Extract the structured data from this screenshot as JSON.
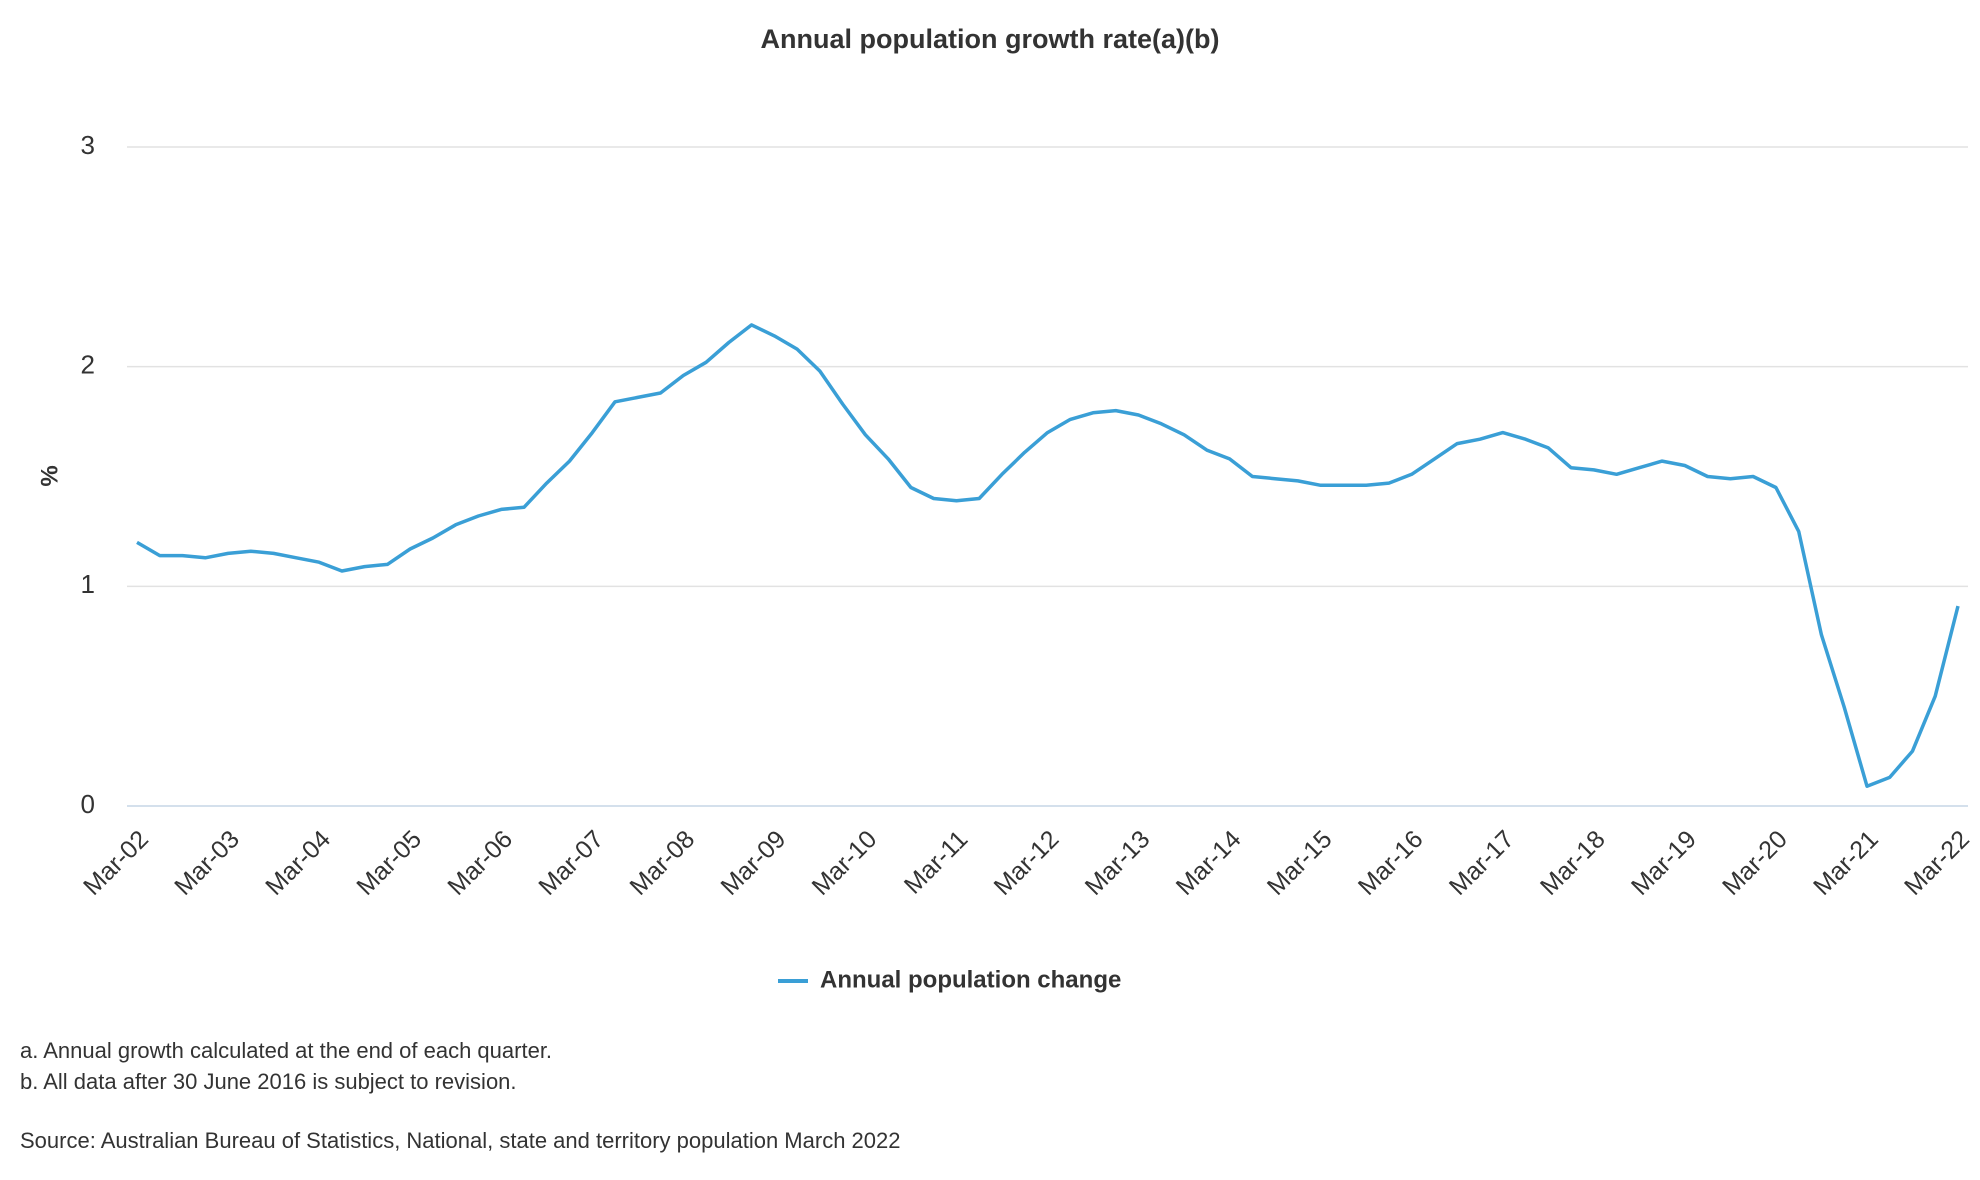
{
  "chart_data": {
    "type": "line",
    "title": "Annual population growth rate(a)(b)",
    "y_label": "%",
    "categories": [
      "Mar-02",
      null,
      null,
      null,
      "Mar-03",
      null,
      null,
      null,
      "Mar-04",
      null,
      null,
      null,
      "Mar-05",
      null,
      null,
      null,
      "Mar-06",
      null,
      null,
      null,
      "Mar-07",
      null,
      null,
      null,
      "Mar-08",
      null,
      null,
      null,
      "Mar-09",
      null,
      null,
      null,
      "Mar-10",
      null,
      null,
      null,
      "Mar-11",
      null,
      null,
      null,
      "Mar-12",
      null,
      null,
      null,
      "Mar-13",
      null,
      null,
      null,
      "Mar-14",
      null,
      null,
      null,
      "Mar-15",
      null,
      null,
      null,
      "Mar-16",
      null,
      null,
      null,
      "Mar-17",
      null,
      null,
      null,
      "Mar-18",
      null,
      null,
      null,
      "Mar-19",
      null,
      null,
      null,
      "Mar-20",
      null,
      null,
      null,
      "Mar-21",
      null,
      null,
      null,
      "Mar-22"
    ],
    "series": [
      {
        "name": "Annual population change",
        "color": "#3a9fd6",
        "values": [
          1.2,
          1.14,
          1.14,
          1.13,
          1.15,
          1.16,
          1.15,
          1.13,
          1.11,
          1.07,
          1.09,
          1.1,
          1.17,
          1.22,
          1.28,
          1.32,
          1.35,
          1.36,
          1.47,
          1.57,
          1.7,
          1.84,
          1.86,
          1.88,
          1.96,
          2.02,
          2.11,
          2.19,
          2.14,
          2.08,
          1.98,
          1.83,
          1.69,
          1.58,
          1.45,
          1.4,
          1.39,
          1.4,
          1.51,
          1.61,
          1.7,
          1.76,
          1.79,
          1.8,
          1.78,
          1.74,
          1.69,
          1.62,
          1.58,
          1.5,
          1.49,
          1.48,
          1.46,
          1.46,
          1.46,
          1.47,
          1.51,
          1.58,
          1.65,
          1.67,
          1.7,
          1.67,
          1.63,
          1.54,
          1.53,
          1.51,
          1.54,
          1.57,
          1.55,
          1.5,
          1.49,
          1.5,
          1.45,
          1.25,
          0.78,
          0.45,
          0.09,
          0.13,
          0.25,
          0.5,
          0.91
        ]
      }
    ],
    "ylim": [
      0,
      3
    ],
    "yticks": [
      0,
      1,
      2,
      3
    ],
    "grid": true,
    "notes": [
      "a. Annual growth calculated at the end of each quarter.",
      "b. All data after 30 June 2016 is subject to revision."
    ],
    "source": "Source: Australian Bureau of Statistics, National, state and territory population March 2022"
  }
}
